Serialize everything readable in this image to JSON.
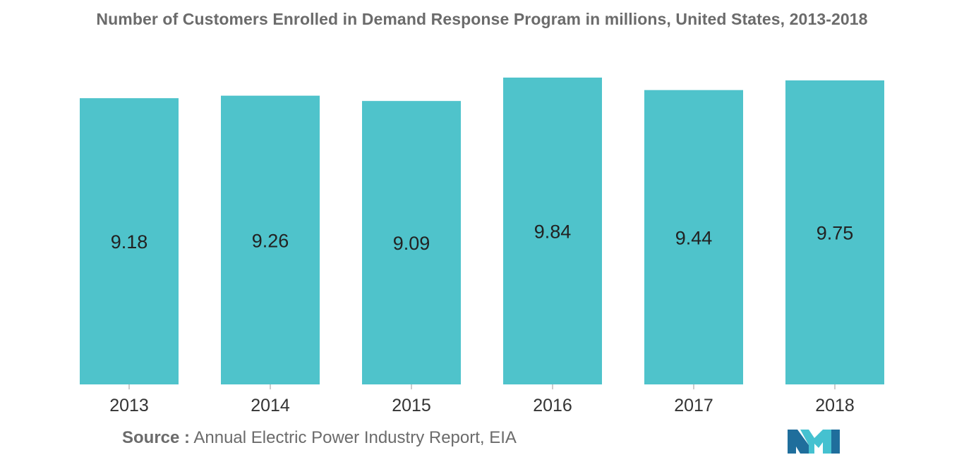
{
  "chart_data": {
    "type": "bar",
    "title": "Number of Customers Enrolled in Demand Response Program in millions, United States, 2013-2018",
    "categories": [
      "2013",
      "2014",
      "2015",
      "2016",
      "2017",
      "2018"
    ],
    "values": [
      9.18,
      9.26,
      9.09,
      9.84,
      9.44,
      9.75
    ],
    "value_labels": [
      "9.18",
      "9.26",
      "9.09",
      "9.84",
      "9.44",
      "9.75"
    ],
    "xlabel": "",
    "ylabel": "",
    "ylim": [
      0,
      9.84
    ],
    "grid": false,
    "legend": "none",
    "bar_color": "#4fc3cb"
  },
  "source": {
    "label": "Source :",
    "text": " Annual Electric Power Industry Report, EIA"
  },
  "logo": {
    "icon": "mordor-intelligence-logo-icon",
    "colors": [
      "#1f6e9c",
      "#45c1d0"
    ]
  }
}
